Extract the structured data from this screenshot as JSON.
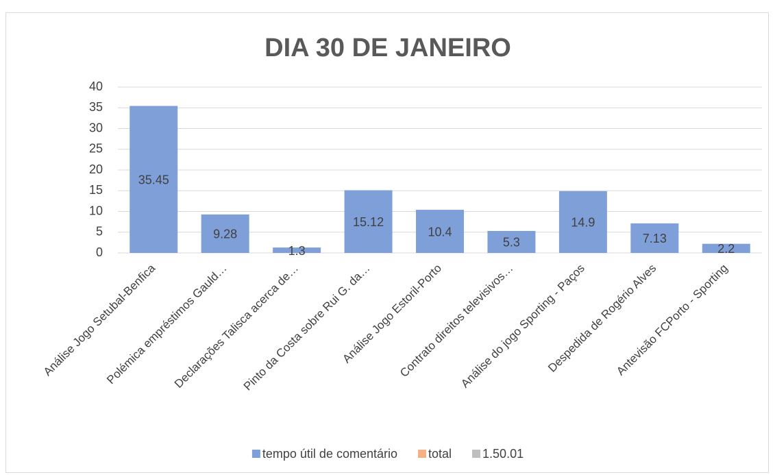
{
  "chart_data": {
    "type": "bar",
    "title": "DIA 30 DE JANEIRO",
    "categories": [
      "Análise Jogo Setubal-Benfica",
      "Polémica empréstimos Gauld…",
      "Declarações Talisca acerca de…",
      "Pinto da Costa sobre Rui G. da…",
      "Análise Jogo Estoril-Porto",
      "Contrato direitos televisivos…",
      "Análise do jogo Sporting - Paços",
      "Despedida de Rogério Alves",
      "Antevisão FCPorto - Sporting"
    ],
    "series": [
      {
        "name": "tempo útil de comentário",
        "color": "#7f9fd9",
        "values": [
          35.45,
          9.28,
          1.3,
          15.12,
          10.4,
          5.3,
          14.9,
          7.13,
          2.2
        ]
      },
      {
        "name": "total",
        "color": "#f4b183",
        "values": [
          null,
          null,
          null,
          null,
          null,
          null,
          null,
          null,
          null
        ]
      },
      {
        "name": "1.50.01",
        "color": "#bfbfbf",
        "values": [
          null,
          null,
          null,
          null,
          null,
          null,
          null,
          null,
          null
        ]
      }
    ],
    "ylim": [
      0,
      40
    ],
    "yticks": [
      0,
      5,
      10,
      15,
      20,
      25,
      30,
      35,
      40
    ],
    "grid": true,
    "legend": "bottom"
  }
}
